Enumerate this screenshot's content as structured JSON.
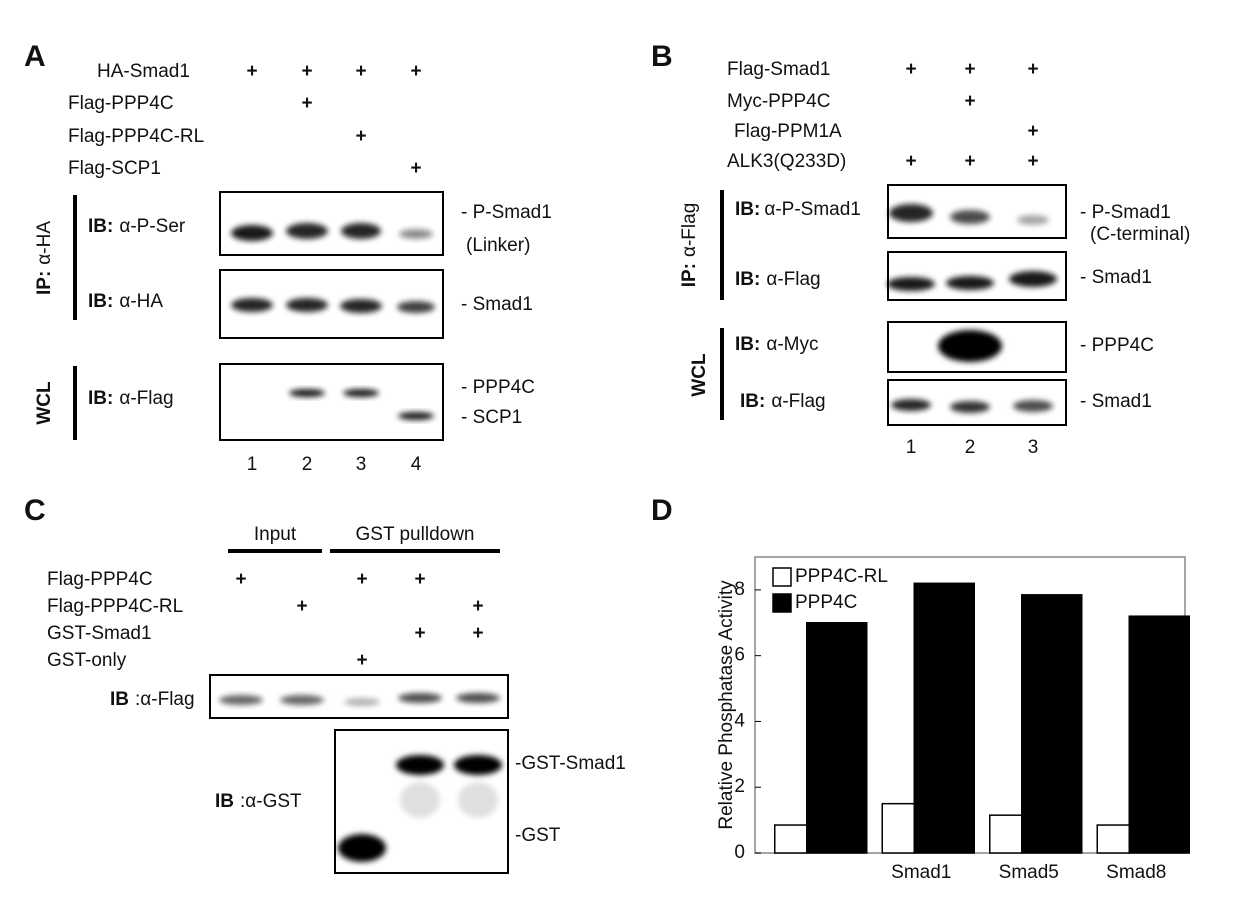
{
  "panel_a": {
    "letter": "A",
    "conditions": [
      "HA-Smad1",
      "Flag-PPP4C",
      "Flag-PPP4C-RL",
      "Flag-SCP1"
    ],
    "plus": [
      [
        "+",
        "+",
        "+",
        "+"
      ],
      [
        null,
        "+",
        null,
        null
      ],
      [
        null,
        null,
        "+",
        null
      ],
      [
        null,
        null,
        null,
        "+"
      ]
    ],
    "blots": [
      {
        "ib": "IB:",
        "antibody": "α-P-Ser",
        "bands": [
          "- P-Smad1",
          "(Linker)"
        ]
      },
      {
        "ib": "IB:",
        "antibody": "α-HA",
        "bands": [
          "- Smad1"
        ]
      },
      {
        "ib": "IB:",
        "antibody": "α-Flag",
        "bands": [
          "- PPP4C",
          "- SCP1"
        ]
      }
    ],
    "groups": [
      {
        "prefix": "IP:",
        "label": "α-HA"
      },
      {
        "label": "WCL"
      }
    ],
    "lanes": [
      "1",
      "2",
      "3",
      "4"
    ]
  },
  "panel_b": {
    "letter": "B",
    "conditions": [
      "Flag-Smad1",
      "Myc-PPP4C",
      "Flag-PPM1A",
      "ALK3(Q233D)"
    ],
    "plus": [
      [
        "+",
        "+",
        "+"
      ],
      [
        null,
        "+",
        null
      ],
      [
        null,
        null,
        "+"
      ],
      [
        "+",
        "+",
        "+"
      ]
    ],
    "blots": [
      {
        "ib": "IB:",
        "antibody": "α-P-Smad1",
        "bands": [
          "- P-Smad1",
          "(C-terminal)"
        ]
      },
      {
        "ib": "IB:",
        "antibody": "α-Flag",
        "bands": [
          "- Smad1"
        ]
      },
      {
        "ib": "IB:",
        "antibody": "α-Myc",
        "bands": [
          "- PPP4C"
        ]
      },
      {
        "ib": "IB:",
        "antibody": "α-Flag",
        "bands": [
          "- Smad1"
        ]
      }
    ],
    "groups": [
      {
        "prefix": "IP:",
        "label": "α-Flag"
      },
      {
        "label": "WCL"
      }
    ],
    "lanes": [
      "1",
      "2",
      "3"
    ]
  },
  "panel_c": {
    "letter": "C",
    "headers": [
      "Input",
      "GST pulldown"
    ],
    "conditions": [
      "Flag-PPP4C",
      "Flag-PPP4C-RL",
      "GST-Smad1",
      "GST-only"
    ],
    "plus": [
      [
        "+",
        null,
        "+",
        "+",
        null
      ],
      [
        null,
        "+",
        null,
        null,
        "+"
      ],
      [
        null,
        null,
        null,
        "+",
        "+"
      ],
      [
        null,
        null,
        "+",
        null,
        null
      ]
    ],
    "blots": [
      {
        "ib": "IB",
        "antibody": ":α-Flag",
        "bands": []
      },
      {
        "ib": "IB",
        "antibody": ":α-GST",
        "bands": [
          "-GST-Smad1",
          "-GST"
        ]
      }
    ]
  },
  "panel_d": {
    "letter": "D",
    "chart_data": {
      "type": "bar",
      "y_label": "Relative Phosphatase Activity",
      "categories": [
        null,
        "Smad1",
        "Smad5",
        "Smad8"
      ],
      "series": [
        {
          "name": "PPP4C-RL",
          "color": "#ffffff",
          "values": [
            0.85,
            1.5,
            1.15,
            0.85
          ]
        },
        {
          "name": "PPP4C",
          "color": "#000000",
          "values": [
            7.0,
            8.2,
            7.85,
            7.2
          ]
        }
      ],
      "ylim": [
        0,
        9
      ],
      "yticks": [
        0,
        2,
        4,
        6,
        8
      ],
      "legend": "top-left"
    }
  }
}
